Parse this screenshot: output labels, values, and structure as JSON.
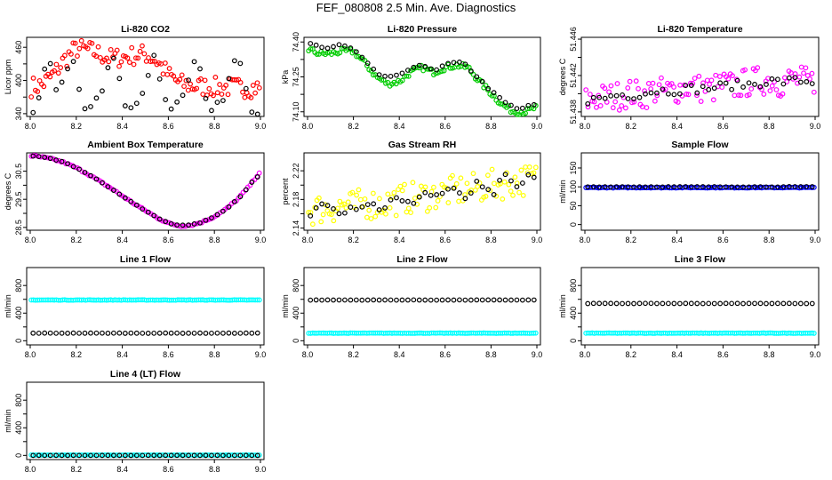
{
  "title": "FEF_080808  2.5 Min. Ave. Diagnostics",
  "colors": {
    "black": "#000000",
    "red": "#ff0000",
    "green": "#00cc00",
    "magenta": "#ff00ff",
    "yellow": "#ffff00",
    "blue": "#0000ff",
    "cyan": "#00ffff"
  },
  "chart_data": [
    {
      "type": "scatter",
      "title": "Li-820 CO2",
      "ylabel": "Licor ppm",
      "xlim": [
        8.0,
        9.0
      ],
      "ylim": [
        335,
        478
      ],
      "xticks": [
        8.0,
        8.2,
        8.4,
        8.6,
        8.8,
        9.0
      ],
      "xtick_labels": [
        "8.0",
        "8.2",
        "8.4",
        "8.6",
        "8.8",
        "9.0"
      ],
      "yticks": [
        340,
        370,
        400,
        430,
        460
      ],
      "ytick_labels": [
        "340",
        "",
        "400",
        "",
        "460"
      ],
      "series": [
        {
          "color": "#ff0000",
          "x": [
            8.0,
            8.05,
            8.1,
            8.15,
            8.2,
            8.25,
            8.3,
            8.35,
            8.4,
            8.45,
            8.5,
            8.55,
            8.6,
            8.65,
            8.7,
            8.75,
            8.8,
            8.85,
            8.9,
            8.95,
            9.0
          ],
          "y": [
            388,
            392,
            410,
            438,
            458,
            455,
            448,
            440,
            442,
            445,
            448,
            435,
            410,
            395,
            390,
            389,
            388,
            388,
            387,
            387,
            387
          ]
        },
        {
          "color": "#000000",
          "x": [
            8.02,
            8.08,
            8.12,
            8.18,
            8.24,
            8.3,
            8.36,
            8.42,
            8.48,
            8.54,
            8.6,
            8.66,
            8.72,
            8.78,
            8.84,
            8.9,
            8.96
          ],
          "y": [
            340,
            448,
            370,
            448,
            340,
            370,
            448,
            340,
            370,
            448,
            340,
            370,
            448,
            340,
            370,
            448,
            340
          ]
        }
      ]
    },
    {
      "type": "scatter",
      "title": "Li-820 Pressure",
      "ylabel": "kPa",
      "xlim": [
        8.0,
        9.0
      ],
      "ylim": [
        74.08,
        74.42
      ],
      "xticks": [
        8.0,
        8.2,
        8.4,
        8.6,
        8.8,
        9.0
      ],
      "xtick_labels": [
        "8.0",
        "8.2",
        "8.4",
        "8.6",
        "8.8",
        "9.0"
      ],
      "yticks": [
        74.1,
        74.175,
        74.25,
        74.325,
        74.4
      ],
      "ytick_labels": [
        "74.10",
        "",
        "74.25",
        "",
        "74.40"
      ],
      "series": [
        {
          "color": "#00cc00",
          "x": [
            8.0,
            8.05,
            8.1,
            8.15,
            8.2,
            8.25,
            8.3,
            8.35,
            8.4,
            8.45,
            8.5,
            8.55,
            8.6,
            8.65,
            8.7,
            8.75,
            8.8,
            8.85,
            8.9,
            8.95,
            9.0
          ],
          "y": [
            74.37,
            74.35,
            74.35,
            74.36,
            74.36,
            74.31,
            74.25,
            74.22,
            74.23,
            74.27,
            74.29,
            74.27,
            74.29,
            74.3,
            74.29,
            74.23,
            74.18,
            74.13,
            74.1,
            74.1,
            74.12
          ]
        },
        {
          "color": "#000000",
          "x": [
            8.02,
            8.08,
            8.14,
            8.2,
            8.26,
            8.32,
            8.38,
            8.44,
            8.5,
            8.56,
            8.62,
            8.68,
            8.74,
            8.8,
            8.86,
            8.92,
            8.98
          ],
          "y": [
            74.39,
            74.37,
            74.39,
            74.37,
            74.31,
            74.25,
            74.25,
            74.28,
            74.3,
            74.28,
            74.31,
            74.31,
            74.25,
            74.19,
            74.14,
            74.11,
            74.13
          ]
        }
      ]
    },
    {
      "type": "scatter",
      "title": "Li-820 Temperature",
      "ylabel": "degrees C",
      "xlim": [
        8.0,
        9.0
      ],
      "ylim": [
        51.4375,
        51.4462
      ],
      "xticks": [
        8.0,
        8.2,
        8.4,
        8.6,
        8.8,
        9.0
      ],
      "xtick_labels": [
        "8.0",
        "8.2",
        "8.4",
        "8.6",
        "8.8",
        "9.0"
      ],
      "yticks": [
        51.438,
        51.44,
        51.442,
        51.444,
        51.446
      ],
      "ytick_labels": [
        "51.438",
        "",
        "51.442",
        "",
        "51.446"
      ],
      "series": [
        {
          "color": "#ff00ff",
          "x": [
            8.0,
            8.05,
            8.1,
            8.15,
            8.2,
            8.25,
            8.3,
            8.35,
            8.4,
            8.45,
            8.5,
            8.55,
            8.6,
            8.65,
            8.7,
            8.75,
            8.8,
            8.85,
            8.9,
            8.95,
            9.0
          ],
          "y": [
            51.4392,
            51.4395,
            51.4396,
            51.4398,
            51.4401,
            51.4398,
            51.4404,
            51.4402,
            51.4405,
            51.4408,
            51.4406,
            51.4405,
            51.441,
            51.4408,
            51.4412,
            51.4414,
            51.4415,
            51.4412,
            51.4416,
            51.4414,
            51.4412
          ]
        },
        {
          "color": "#000000",
          "x": [
            8.02,
            8.08,
            8.14,
            8.2,
            8.26,
            8.32,
            8.38,
            8.44,
            8.5,
            8.56,
            8.62,
            8.68,
            8.74,
            8.8,
            8.86,
            8.92,
            8.98
          ],
          "y": [
            51.4393,
            51.4395,
            51.4399,
            51.4398,
            51.4401,
            51.4404,
            51.4403,
            51.4406,
            51.4405,
            51.4407,
            51.4409,
            51.441,
            51.4411,
            51.4414,
            51.4413,
            51.4415,
            51.4413
          ]
        }
      ]
    },
    {
      "type": "scatter",
      "title": "Ambient Box Temperature",
      "ylabel": "degrees C",
      "xlim": [
        8.0,
        9.0
      ],
      "ylim": [
        28.4,
        31.15
      ],
      "xticks": [
        8.0,
        8.2,
        8.4,
        8.6,
        8.8,
        9.0
      ],
      "xtick_labels": [
        "8.0",
        "8.2",
        "8.4",
        "8.6",
        "8.8",
        "9.0"
      ],
      "yticks": [
        28.5,
        29.0,
        29.5,
        30.0,
        30.5
      ],
      "ytick_labels": [
        "28.5",
        "",
        "29.5",
        "",
        "30.5"
      ],
      "series": [
        {
          "color": "#ff00ff",
          "x": [
            8.0,
            8.05,
            8.1,
            8.15,
            8.2,
            8.25,
            8.3,
            8.35,
            8.4,
            8.45,
            8.5,
            8.55,
            8.6,
            8.65,
            8.7,
            8.75,
            8.8,
            8.85,
            8.9,
            8.95,
            9.0
          ],
          "y": [
            31.05,
            31.0,
            30.92,
            30.8,
            30.62,
            30.4,
            30.15,
            29.9,
            29.62,
            29.35,
            29.1,
            28.85,
            28.65,
            28.55,
            28.58,
            28.7,
            28.88,
            29.15,
            29.5,
            29.95,
            30.5
          ]
        },
        {
          "color": "#000000",
          "x": [
            8.02,
            8.08,
            8.14,
            8.2,
            8.26,
            8.32,
            8.38,
            8.44,
            8.5,
            8.56,
            8.62,
            8.68,
            8.74,
            8.8,
            8.86,
            8.92,
            8.98
          ],
          "y": [
            31.03,
            30.97,
            30.84,
            30.62,
            30.35,
            30.05,
            29.72,
            29.4,
            29.1,
            28.8,
            28.6,
            28.57,
            28.67,
            28.88,
            29.2,
            29.65,
            30.3
          ]
        }
      ]
    },
    {
      "type": "scatter",
      "title": "Gas Stream RH",
      "ylabel": "percent",
      "xlim": [
        8.0,
        9.0
      ],
      "ylim": [
        2.137,
        2.245
      ],
      "xticks": [
        8.0,
        8.2,
        8.4,
        8.6,
        8.8,
        9.0
      ],
      "xtick_labels": [
        "8.0",
        "8.2",
        "8.4",
        "8.6",
        "8.8",
        "9.0"
      ],
      "yticks": [
        2.14,
        2.16,
        2.18,
        2.2,
        2.22
      ],
      "ytick_labels": [
        "2.14",
        "",
        "2.18",
        "",
        "2.22"
      ],
      "series": [
        {
          "color": "#ffff00",
          "x": [
            8.0,
            8.05,
            8.1,
            8.15,
            8.2,
            8.25,
            8.3,
            8.35,
            8.4,
            8.45,
            8.5,
            8.55,
            8.6,
            8.65,
            8.7,
            8.75,
            8.8,
            8.85,
            8.9,
            8.95,
            9.0
          ],
          "y": [
            2.164,
            2.167,
            2.168,
            2.172,
            2.17,
            2.175,
            2.173,
            2.176,
            2.18,
            2.182,
            2.184,
            2.186,
            2.19,
            2.192,
            2.194,
            2.196,
            2.2,
            2.202,
            2.205,
            2.207,
            2.21
          ]
        },
        {
          "color": "#000000",
          "x": [
            8.02,
            8.08,
            8.14,
            8.2,
            8.26,
            8.32,
            8.38,
            8.44,
            8.5,
            8.56,
            8.62,
            8.68,
            8.74,
            8.8,
            8.86,
            8.92,
            8.98
          ],
          "y": [
            2.16,
            2.18,
            2.165,
            2.17,
            2.175,
            2.168,
            2.18,
            2.172,
            2.19,
            2.185,
            2.195,
            2.18,
            2.2,
            2.185,
            2.21,
            2.195,
            2.215
          ]
        }
      ]
    },
    {
      "type": "scatter",
      "title": "Sample Flow",
      "ylabel": "ml/min",
      "xlim": [
        8.0,
        9.0
      ],
      "ylim": [
        -15,
        190
      ],
      "xticks": [
        8.0,
        8.2,
        8.4,
        8.6,
        8.8,
        9.0
      ],
      "xtick_labels": [
        "8.0",
        "8.2",
        "8.4",
        "8.6",
        "8.8",
        "9.0"
      ],
      "yticks": [
        0,
        50,
        100,
        150
      ],
      "ytick_labels": [
        "0",
        "50",
        "100",
        "150"
      ],
      "series": [
        {
          "color": "#0000ff",
          "x": [
            8.0,
            9.0
          ],
          "y": [
            98,
            98
          ]
        },
        {
          "color": "#000000",
          "x": [
            8.0,
            9.0
          ],
          "y": [
            100,
            100
          ]
        }
      ]
    },
    {
      "type": "scatter",
      "title": "Line 1 Flow",
      "ylabel": "ml/min",
      "xlim": [
        8.0,
        9.0
      ],
      "ylim": [
        -60,
        1060
      ],
      "xticks": [
        8.0,
        8.2,
        8.4,
        8.6,
        8.8,
        9.0
      ],
      "xtick_labels": [
        "8.0",
        "8.2",
        "8.4",
        "8.6",
        "8.8",
        "9.0"
      ],
      "yticks": [
        0,
        200,
        400,
        600,
        800
      ],
      "ytick_labels": [
        "0",
        "",
        "400",
        "",
        "800"
      ],
      "series": [
        {
          "color": "#00ffff",
          "x": [
            8.0,
            9.0
          ],
          "y": [
            590,
            590
          ]
        },
        {
          "color": "#000000",
          "x": [
            8.0,
            9.0
          ],
          "y": [
            110,
            110
          ]
        }
      ]
    },
    {
      "type": "scatter",
      "title": "Line 2 Flow",
      "ylabel": "ml/min",
      "xlim": [
        8.0,
        9.0
      ],
      "ylim": [
        -60,
        1060
      ],
      "xticks": [
        8.0,
        8.2,
        8.4,
        8.6,
        8.8,
        9.0
      ],
      "xtick_labels": [
        "8.0",
        "8.2",
        "8.4",
        "8.6",
        "8.8",
        "9.0"
      ],
      "yticks": [
        0,
        200,
        400,
        600,
        800
      ],
      "ytick_labels": [
        "0",
        "",
        "400",
        "",
        "800"
      ],
      "series": [
        {
          "color": "#00ffff",
          "x": [
            8.0,
            9.0
          ],
          "y": [
            110,
            110
          ]
        },
        {
          "color": "#000000",
          "x": [
            8.0,
            9.0
          ],
          "y": [
            590,
            590
          ]
        }
      ]
    },
    {
      "type": "scatter",
      "title": "Line 3 Flow",
      "ylabel": "ml/min",
      "xlim": [
        8.0,
        9.0
      ],
      "ylim": [
        -60,
        1060
      ],
      "xticks": [
        8.0,
        8.2,
        8.4,
        8.6,
        8.8,
        9.0
      ],
      "xtick_labels": [
        "8.0",
        "8.2",
        "8.4",
        "8.6",
        "8.8",
        "9.0"
      ],
      "yticks": [
        0,
        200,
        400,
        600,
        800
      ],
      "ytick_labels": [
        "0",
        "",
        "400",
        "",
        "800"
      ],
      "series": [
        {
          "color": "#00ffff",
          "x": [
            8.0,
            9.0
          ],
          "y": [
            110,
            110
          ]
        },
        {
          "color": "#000000",
          "x": [
            8.0,
            9.0
          ],
          "y": [
            540,
            540
          ]
        }
      ]
    },
    {
      "type": "scatter",
      "title": "Line 4 (LT) Flow",
      "ylabel": "ml/min",
      "xlim": [
        8.0,
        9.0
      ],
      "ylim": [
        -60,
        1060
      ],
      "xticks": [
        8.0,
        8.2,
        8.4,
        8.6,
        8.8,
        9.0
      ],
      "xtick_labels": [
        "8.0",
        "8.2",
        "8.4",
        "8.6",
        "8.8",
        "9.0"
      ],
      "yticks": [
        0,
        200,
        400,
        600,
        800
      ],
      "ytick_labels": [
        "0",
        "",
        "400",
        "",
        "800"
      ],
      "series": [
        {
          "color": "#00ffff",
          "x": [
            8.0,
            9.0
          ],
          "y": [
            5,
            5
          ]
        },
        {
          "color": "#000000",
          "x": [
            8.0,
            9.0
          ],
          "y": [
            0,
            0
          ]
        }
      ]
    }
  ]
}
